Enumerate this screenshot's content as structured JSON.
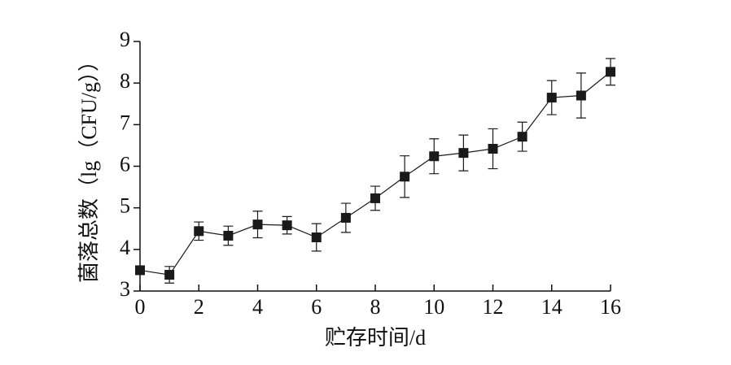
{
  "chart_data": {
    "type": "line",
    "x_label": "贮存时间/d",
    "y_label": "菌落总数（lg（CFU/g））",
    "x": [
      0,
      1,
      2,
      3,
      4,
      5,
      6,
      7,
      8,
      9,
      10,
      11,
      12,
      13,
      14,
      15,
      16
    ],
    "series": [
      {
        "color": "#1a1a1a",
        "values": [
          3.5,
          3.39,
          4.44,
          4.33,
          4.6,
          4.58,
          4.29,
          4.76,
          5.23,
          5.75,
          6.24,
          6.32,
          6.42,
          6.71,
          7.65,
          7.7,
          8.27
        ],
        "errors": [
          0.05,
          0.2,
          0.22,
          0.23,
          0.32,
          0.21,
          0.33,
          0.35,
          0.29,
          0.5,
          0.42,
          0.43,
          0.48,
          0.35,
          0.41,
          0.54,
          0.32
        ]
      }
    ],
    "xlim": [
      0,
      16
    ],
    "xticks": [
      0,
      2,
      4,
      6,
      8,
      10,
      12,
      14,
      16
    ],
    "ylim": [
      3,
      9
    ],
    "yticks": [
      3,
      4,
      5,
      6,
      7,
      8,
      9
    ]
  }
}
